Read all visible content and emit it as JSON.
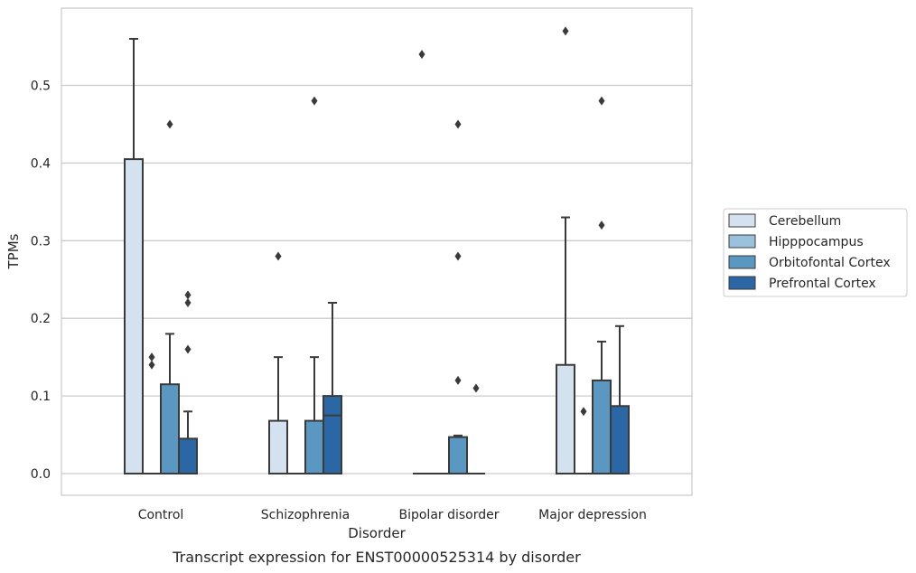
{
  "chart_data": {
    "type": "boxplot",
    "caption": "Transcript expression for ENST00000525314 by disorder",
    "xlabel": "Disorder",
    "ylabel": "TPMs",
    "ylim": [
      -0.028,
      0.6
    ],
    "yticks": [
      0.0,
      0.1,
      0.2,
      0.3,
      0.4,
      0.5
    ],
    "ytick_labels": [
      "0.0",
      "0.1",
      "0.2",
      "0.3",
      "0.4",
      "0.5"
    ],
    "grid": "horizontal",
    "legend_placement": "right",
    "categories": [
      "Control",
      "Schizophrenia",
      "Bipolar disorder",
      "Major depression"
    ],
    "series": [
      {
        "name": "Cerebellum",
        "color": "#d4e2f0",
        "boxes": [
          {
            "q1": 0.0,
            "median": 0.0,
            "q3": 0.405,
            "whisker_low": 0.0,
            "whisker_high": 0.56,
            "outliers": []
          },
          {
            "q1": 0.0,
            "median": 0.0,
            "q3": 0.068,
            "whisker_low": 0.0,
            "whisker_high": 0.15,
            "outliers": [
              0.28
            ]
          },
          {
            "q1": 0.0,
            "median": 0.0,
            "q3": 0.0,
            "whisker_low": 0.0,
            "whisker_high": 0.0,
            "outliers": [
              0.54
            ]
          },
          {
            "q1": 0.0,
            "median": 0.0,
            "q3": 0.14,
            "whisker_low": 0.0,
            "whisker_high": 0.33,
            "outliers": [
              0.57
            ]
          }
        ]
      },
      {
        "name": "Hipppocampus",
        "color": "#9ac2dc",
        "boxes": [
          {
            "q1": 0.0,
            "median": 0.0,
            "q3": 0.0,
            "whisker_low": 0.0,
            "whisker_high": 0.0,
            "outliers": [
              0.14,
              0.15
            ]
          },
          {
            "q1": 0.0,
            "median": 0.0,
            "q3": 0.0,
            "whisker_low": 0.0,
            "whisker_high": 0.0,
            "outliers": []
          },
          {
            "q1": 0.0,
            "median": 0.0,
            "q3": 0.0,
            "whisker_low": 0.0,
            "whisker_high": 0.0,
            "outliers": []
          },
          {
            "q1": 0.0,
            "median": 0.0,
            "q3": 0.0,
            "whisker_low": 0.0,
            "whisker_high": 0.0,
            "outliers": [
              0.08
            ]
          }
        ]
      },
      {
        "name": "Orbitofontal Cortex",
        "color": "#5a97c1",
        "boxes": [
          {
            "q1": 0.0,
            "median": 0.0,
            "q3": 0.115,
            "whisker_low": 0.0,
            "whisker_high": 0.18,
            "outliers": [
              0.45
            ]
          },
          {
            "q1": 0.0,
            "median": 0.0,
            "q3": 0.068,
            "whisker_low": 0.0,
            "whisker_high": 0.15,
            "outliers": [
              0.48
            ]
          },
          {
            "q1": 0.0,
            "median": 0.0,
            "q3": 0.047,
            "whisker_low": 0.0,
            "whisker_high": 0.049,
            "outliers": [
              0.12,
              0.28,
              0.45
            ]
          },
          {
            "q1": 0.0,
            "median": 0.0,
            "q3": 0.12,
            "whisker_low": 0.0,
            "whisker_high": 0.17,
            "outliers": [
              0.32,
              0.48
            ]
          }
        ]
      },
      {
        "name": "Prefrontal Cortex",
        "color": "#2c67a5",
        "boxes": [
          {
            "q1": 0.0,
            "median": 0.0,
            "q3": 0.045,
            "whisker_low": 0.0,
            "whisker_high": 0.08,
            "outliers": [
              0.16,
              0.22,
              0.23
            ]
          },
          {
            "q1": 0.0,
            "median": 0.075,
            "q3": 0.1,
            "whisker_low": 0.0,
            "whisker_high": 0.22,
            "outliers": []
          },
          {
            "q1": 0.0,
            "median": 0.0,
            "q3": 0.0,
            "whisker_low": 0.0,
            "whisker_high": 0.0,
            "outliers": [
              0.11
            ]
          },
          {
            "q1": 0.0,
            "median": 0.0,
            "q3": 0.087,
            "whisker_low": 0.0,
            "whisker_high": 0.19,
            "outliers": []
          }
        ]
      }
    ]
  }
}
